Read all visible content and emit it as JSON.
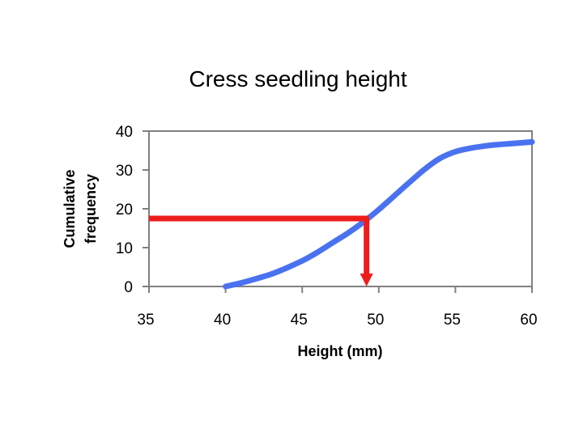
{
  "chart_data": {
    "type": "line",
    "title": "Cress seedling height",
    "xlabel": "Height (mm)",
    "ylabel_lines": [
      "Cumulative",
      "frequency"
    ],
    "xlim": [
      35,
      60
    ],
    "ylim": [
      0,
      40
    ],
    "xticks": [
      35,
      40,
      45,
      50,
      55,
      60
    ],
    "yticks": [
      0,
      10,
      20,
      30,
      40
    ],
    "grid": false,
    "legend": "none",
    "series": [
      {
        "x": [
          40,
          41,
          42,
          43,
          44,
          45,
          46,
          47,
          48,
          49,
          50,
          51,
          52,
          53,
          54,
          55,
          56,
          57,
          58,
          59,
          60
        ],
        "values": [
          0,
          0.9,
          2,
          3.2,
          4.8,
          6.6,
          8.8,
          11.3,
          13.8,
          16.6,
          19.8,
          23.3,
          26.8,
          30.2,
          33.0,
          34.7,
          35.6,
          36.2,
          36.6,
          36.9,
          37.2
        ]
      }
    ],
    "reading_x": 49.2,
    "reading_y": 17.5,
    "colors": {
      "curve": "#4a72f0",
      "reading": "#ee1c1c",
      "frame": "#808080",
      "background": "#ffffff"
    }
  }
}
